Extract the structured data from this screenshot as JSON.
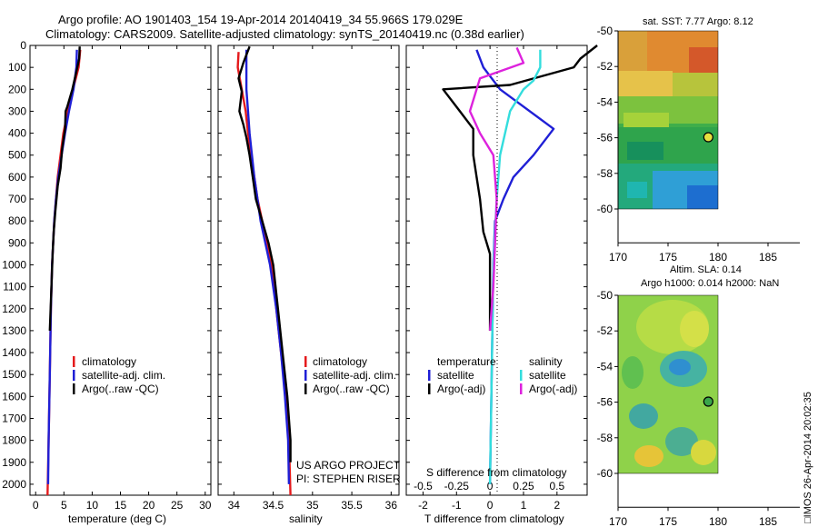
{
  "title": {
    "line1": "Argo profile: AO 1901403_154 19-Apr-2014 20140419_34 55.966S 179.029E",
    "line2": "Climatology: CARS2009. Satellite-adjusted climatology: synTS_20140419.nc (0.38d earlier)"
  },
  "colors": {
    "climatology": "#e41a1c",
    "satellite": "#1f1fd6",
    "argo": "#000000",
    "salinity_satellite": "#33dddd",
    "salinity_argo": "#dd22dd"
  },
  "chart_data": [
    {
      "id": "temperature",
      "type": "line",
      "xlabel": "temperature (deg C)",
      "ylabel": "",
      "xlim": [
        -1,
        31
      ],
      "ylim": [
        2050,
        0
      ],
      "xticks": [
        "0",
        "5",
        "10",
        "15",
        "20",
        "25",
        "30"
      ],
      "xtick_values": [
        0,
        5,
        10,
        15,
        20,
        25,
        30
      ],
      "yticks": [
        "0",
        "100",
        "200",
        "300",
        "400",
        "500",
        "600",
        "700",
        "800",
        "900",
        "1000",
        "1100",
        "1200",
        "1300",
        "1400",
        "1500",
        "1600",
        "1700",
        "1800",
        "1900",
        "2000"
      ],
      "ytick_values": [
        0,
        100,
        200,
        300,
        400,
        500,
        600,
        700,
        800,
        900,
        1000,
        1100,
        1200,
        1300,
        1400,
        1500,
        1600,
        1700,
        1800,
        1900,
        2000
      ],
      "legend": [
        "climatology",
        "satellite-adj. clim.",
        "Argo(..raw -QC)"
      ],
      "series": [
        {
          "name": "climatology",
          "color": "#e41a1c",
          "points": [
            [
              7.9,
              20
            ],
            [
              7.6,
              100
            ],
            [
              6.6,
              200
            ],
            [
              5.7,
              300
            ],
            [
              4.9,
              400
            ],
            [
              4.4,
              500
            ],
            [
              3.9,
              600
            ],
            [
              3.6,
              700
            ],
            [
              3.3,
              800
            ],
            [
              3.1,
              900
            ],
            [
              2.9,
              1000
            ],
            [
              2.7,
              1200
            ],
            [
              2.5,
              1500
            ],
            [
              2.3,
              1800
            ],
            [
              2.1,
              2050
            ]
          ]
        },
        {
          "name": "satellite-adj. clim.",
          "color": "#1f1fd6",
          "points": [
            [
              7.3,
              20
            ],
            [
              7.2,
              100
            ],
            [
              6.7,
              200
            ],
            [
              5.9,
              300
            ],
            [
              5.2,
              400
            ],
            [
              4.6,
              500
            ],
            [
              4.0,
              600
            ],
            [
              3.6,
              700
            ],
            [
              3.3,
              800
            ],
            [
              3.1,
              900
            ],
            [
              2.9,
              1000
            ],
            [
              2.7,
              1200
            ],
            [
              2.5,
              1500
            ],
            [
              2.3,
              1800
            ],
            [
              2.2,
              2000
            ]
          ]
        },
        {
          "name": "Argo(..raw -QC)",
          "color": "#000000",
          "points": [
            [
              7.8,
              5
            ],
            [
              7.7,
              60
            ],
            [
              7.2,
              120
            ],
            [
              6.5,
              200
            ],
            [
              5.6,
              280
            ],
            [
              5.3,
              300
            ],
            [
              5.2,
              380
            ],
            [
              4.7,
              470
            ],
            [
              4.4,
              560
            ],
            [
              3.9,
              640
            ],
            [
              3.5,
              750
            ],
            [
              3.2,
              850
            ],
            [
              3.0,
              950
            ],
            [
              2.8,
              1100
            ],
            [
              2.5,
              1300
            ]
          ]
        }
      ]
    },
    {
      "id": "salinity",
      "type": "line",
      "xlabel": "salinity",
      "xlim": [
        33.8,
        36.1
      ],
      "ylim": [
        2050,
        0
      ],
      "xticks": [
        "34",
        "34.5",
        "35",
        "35.5",
        "36"
      ],
      "xtick_values": [
        34,
        34.5,
        35,
        35.5,
        36
      ],
      "legend": [
        "climatology",
        "satellite-adj. clim.",
        "Argo(..raw -QC)"
      ],
      "annotation": [
        "US ARGO PROJECT",
        "PI: STEPHEN RISER"
      ],
      "series": [
        {
          "name": "climatology",
          "color": "#e41a1c",
          "points": [
            [
              34.06,
              30
            ],
            [
              34.05,
              100
            ],
            [
              34.1,
              200
            ],
            [
              34.15,
              300
            ],
            [
              34.18,
              400
            ],
            [
              34.22,
              500
            ],
            [
              34.26,
              600
            ],
            [
              34.3,
              700
            ],
            [
              34.36,
              800
            ],
            [
              34.42,
              900
            ],
            [
              34.48,
              1000
            ],
            [
              34.54,
              1200
            ],
            [
              34.6,
              1400
            ],
            [
              34.66,
              1600
            ],
            [
              34.7,
              1800
            ],
            [
              34.72,
              2050
            ]
          ]
        },
        {
          "name": "satellite-adj. clim.",
          "color": "#1f1fd6",
          "points": [
            [
              34.16,
              20
            ],
            [
              34.16,
              100
            ],
            [
              34.16,
              200
            ],
            [
              34.18,
              300
            ],
            [
              34.2,
              400
            ],
            [
              34.23,
              500
            ],
            [
              34.26,
              600
            ],
            [
              34.3,
              700
            ],
            [
              34.34,
              800
            ],
            [
              34.4,
              900
            ],
            [
              34.46,
              1000
            ],
            [
              34.54,
              1200
            ],
            [
              34.6,
              1400
            ],
            [
              34.65,
              1600
            ],
            [
              34.69,
              1800
            ],
            [
              34.7,
              2000
            ]
          ]
        },
        {
          "name": "Argo(..raw -QC)",
          "color": "#000000",
          "points": [
            [
              34.2,
              5
            ],
            [
              34.12,
              80
            ],
            [
              34.06,
              150
            ],
            [
              34.1,
              210
            ],
            [
              34.07,
              300
            ],
            [
              34.12,
              360
            ],
            [
              34.16,
              420
            ],
            [
              34.2,
              500
            ],
            [
              34.24,
              600
            ],
            [
              34.28,
              700
            ],
            [
              34.36,
              800
            ],
            [
              34.44,
              900
            ],
            [
              34.5,
              1000
            ],
            [
              34.56,
              1200
            ],
            [
              34.62,
              1400
            ],
            [
              34.68,
              1600
            ],
            [
              34.72,
              1800
            ],
            [
              34.72,
              1900
            ]
          ]
        }
      ]
    },
    {
      "id": "difference",
      "type": "line",
      "xlabel": "T difference from climatology",
      "xlabel_top": "S difference from climatology",
      "xlim": [
        -2.5,
        2.9
      ],
      "ylim": [
        2050,
        0
      ],
      "xticks": [
        "-2",
        "-1",
        "0",
        "1",
        "2"
      ],
      "xtick_values": [
        -2,
        -1,
        0,
        1,
        2
      ],
      "sticks": [
        "-0.5",
        "-0.25",
        "0",
        "0.25",
        "0.5"
      ],
      "stick_values": [
        -2,
        -1,
        0,
        1,
        2
      ],
      "legend_temperature": [
        "temperature",
        "satellite",
        "Argo(-adj)"
      ],
      "legend_salinity": [
        "salinity",
        "satellite",
        "Argo(-adj)"
      ],
      "series": [
        {
          "name": "temperature satellite",
          "color": "#1f1fd6",
          "points": [
            [
              -0.4,
              20
            ],
            [
              -0.2,
              100
            ],
            [
              0.3,
              200
            ],
            [
              1.9,
              380
            ],
            [
              1.3,
              500
            ],
            [
              0.7,
              600
            ],
            [
              0.4,
              700
            ],
            [
              0.15,
              800
            ],
            [
              0.1,
              1000
            ],
            [
              0.05,
              1500
            ],
            [
              0.0,
              2000
            ]
          ]
        },
        {
          "name": "temperature Argo(-adj)",
          "color": "#000000",
          "points": [
            [
              3.2,
              0
            ],
            [
              2.7,
              60
            ],
            [
              2.5,
              100
            ],
            [
              0.6,
              180
            ],
            [
              -1.4,
              200
            ],
            [
              -1.0,
              280
            ],
            [
              -0.5,
              380
            ],
            [
              -0.5,
              500
            ],
            [
              -0.4,
              600
            ],
            [
              -0.3,
              700
            ],
            [
              -0.2,
              850
            ],
            [
              0.0,
              950
            ],
            [
              0.0,
              1300
            ]
          ]
        },
        {
          "name": "salinity satellite",
          "color": "#33dddd",
          "points": [
            [
              1.5,
              20
            ],
            [
              1.5,
              100
            ],
            [
              1.3,
              160
            ],
            [
              1.0,
              200
            ],
            [
              0.6,
              300
            ],
            [
              0.3,
              500
            ],
            [
              0.2,
              700
            ],
            [
              0.1,
              1000
            ],
            [
              0.05,
              1500
            ],
            [
              0.0,
              2000
            ]
          ]
        },
        {
          "name": "salinity Argo(-adj)",
          "color": "#dd22dd",
          "points": [
            [
              0.8,
              10
            ],
            [
              1.0,
              80
            ],
            [
              -0.3,
              150
            ],
            [
              -0.6,
              300
            ],
            [
              -0.3,
              400
            ],
            [
              0.1,
              500
            ],
            [
              0.2,
              700
            ],
            [
              0.15,
              900
            ],
            [
              0.1,
              1100
            ],
            [
              0.0,
              1300
            ]
          ]
        }
      ]
    },
    {
      "id": "sst_map",
      "type": "heatmap",
      "title": "sat. SST: 7.77  Argo: 8.12",
      "xlim": [
        170,
        188.5
      ],
      "ylim": [
        -61.9,
        -50
      ],
      "xticks": [
        "170",
        "175",
        "180",
        "185"
      ],
      "xtick_values": [
        170,
        175,
        180,
        185
      ],
      "yticks": [
        "-50",
        "-52",
        "-54",
        "-56",
        "-58",
        "-60"
      ],
      "ytick_values": [
        -50,
        -52,
        -54,
        -56,
        -58,
        -60
      ],
      "data_extent": {
        "lon": [
          170,
          180
        ],
        "lat": [
          -60,
          -50
        ]
      },
      "float_position": {
        "lon": 179.03,
        "lat": -55.97
      }
    },
    {
      "id": "sla_map",
      "type": "heatmap",
      "title": "Altim. SLA: 0.14",
      "subtitle": "Argo h1000: 0.014 h2000: NaN",
      "xlim": [
        170,
        188.5
      ],
      "ylim": [
        -61.9,
        -50
      ],
      "xticks": [
        "170",
        "175",
        "180",
        "185"
      ],
      "xtick_values": [
        170,
        175,
        180,
        185
      ],
      "yticks": [
        "-50",
        "-52",
        "-54",
        "-56",
        "-58",
        "-60"
      ],
      "ytick_values": [
        -50,
        -52,
        -54,
        -56,
        -58,
        -60
      ],
      "data_extent": {
        "lon": [
          170,
          180
        ],
        "lat": [
          -60,
          -50
        ]
      },
      "float_position": {
        "lon": 179.03,
        "lat": -55.97
      }
    }
  ],
  "stamp": "□IMOS 26-Apr-2014 20:02:35"
}
